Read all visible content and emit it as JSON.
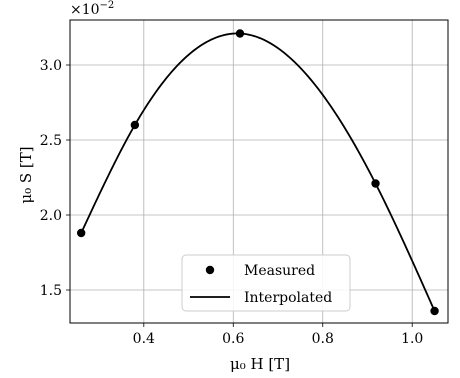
{
  "chart_data": {
    "type": "line",
    "xlabel": "μ₀ H [T]",
    "ylabel": "μ₀ S [T]",
    "y_offset_label": "×10",
    "y_offset_exponent": "−2",
    "xlim": [
      0.235,
      1.08
    ],
    "ylim": [
      1.28,
      3.3
    ],
    "x_ticks": [
      0.4,
      0.6,
      0.8,
      1.0
    ],
    "x_tick_labels": [
      "0.4",
      "0.6",
      "0.8",
      "1.0"
    ],
    "y_ticks": [
      1.5,
      2.0,
      2.5,
      3.0
    ],
    "y_tick_labels": [
      "1.5",
      "2.0",
      "2.5",
      "3.0"
    ],
    "grid": true,
    "legend_position": "bottom-center",
    "series": [
      {
        "name": "Measured",
        "style": "markers",
        "color": "#000000",
        "x": [
          0.26,
          0.38,
          0.615,
          0.918,
          1.05
        ],
        "y": [
          1.88,
          2.6,
          3.21,
          2.21,
          1.36
        ]
      },
      {
        "name": "Interpolated",
        "style": "line",
        "color": "#000000",
        "x": [
          0.26,
          0.38,
          0.615,
          0.918,
          1.05
        ],
        "y": [
          1.88,
          2.6,
          3.21,
          2.21,
          1.36
        ]
      }
    ]
  }
}
